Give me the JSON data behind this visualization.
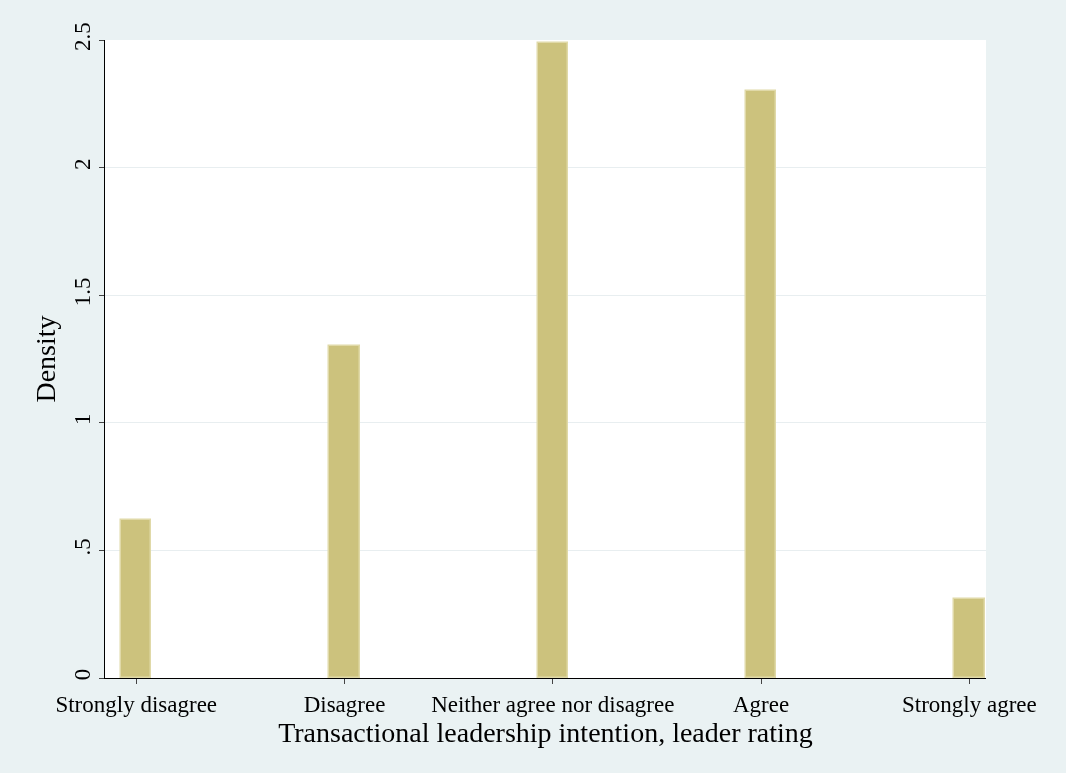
{
  "chart_data": {
    "type": "bar",
    "xlabel": "Transactional leadership intention, leader rating",
    "ylabel": "Density",
    "categories": [
      "Strongly disagree",
      "Disagree",
      "Neither agree nor disagree",
      "Agree",
      "Strongly agree"
    ],
    "values": [
      0.62,
      1.3,
      2.49,
      2.3,
      0.31
    ],
    "color": "#ccc27d",
    "ylim": [
      0,
      2.5
    ],
    "yticks": [
      {
        "value": 0,
        "label": "0"
      },
      {
        "value": 0.5,
        "label": ".5"
      },
      {
        "value": 1,
        "label": "1"
      },
      {
        "value": 1.5,
        "label": "1.5"
      },
      {
        "value": 2,
        "label": "2"
      },
      {
        "value": 2.5,
        "label": "2.5"
      }
    ],
    "grid": "y",
    "legend": false
  }
}
